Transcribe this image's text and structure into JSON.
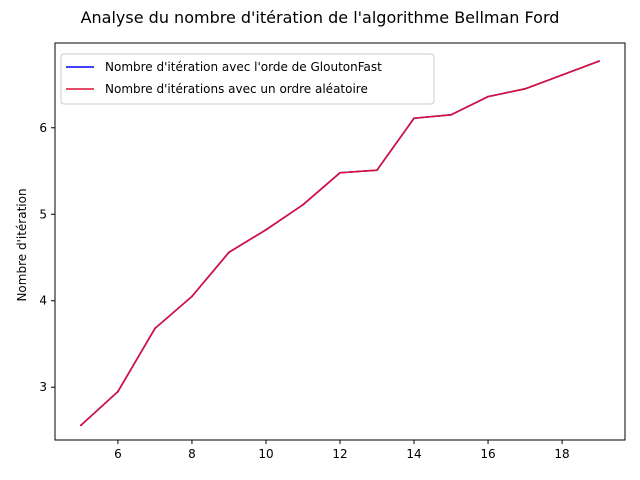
{
  "chart_data": {
    "type": "line",
    "title": "Analyse du nombre d'itération de l'algorithme Bellman Ford",
    "xlabel": "",
    "ylabel": "Nombre d'itération",
    "xlim": [
      4.3,
      19.7
    ],
    "ylim": [
      2.39,
      6.98
    ],
    "x_ticks": [
      6,
      8,
      10,
      12,
      14,
      16,
      18
    ],
    "y_ticks": [
      3,
      4,
      5,
      6
    ],
    "grid": false,
    "legend_position": "top-left",
    "x": [
      5,
      6,
      7,
      8,
      9,
      10,
      11,
      12,
      13,
      14,
      15,
      16,
      17,
      18,
      19
    ],
    "series": [
      {
        "name": "Nombre d'itération avec l'orde de GloutonFast",
        "color": "#0000ff",
        "values": [
          2.56,
          2.95,
          3.68,
          4.05,
          4.56,
          4.82,
          5.11,
          5.48,
          5.51,
          6.11,
          6.15,
          6.36,
          6.45,
          6.61,
          6.77
        ]
      },
      {
        "name": "Nombre d'itérations avec un ordre aléatoire",
        "color": "#dd1133",
        "values": [
          2.56,
          2.95,
          3.68,
          4.05,
          4.56,
          4.82,
          5.11,
          5.48,
          5.51,
          6.11,
          6.15,
          6.36,
          6.45,
          6.61,
          6.77
        ]
      }
    ]
  }
}
